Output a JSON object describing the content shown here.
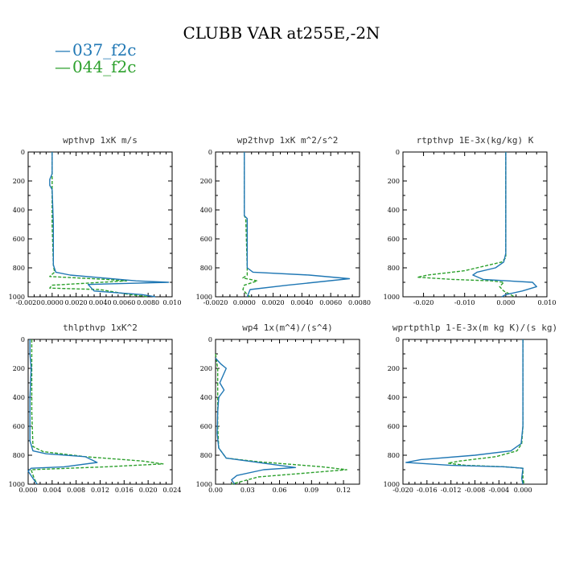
{
  "figure": {
    "title": "CLUBB VAR at255E,-2N",
    "legend": [
      {
        "label": "037_f2c",
        "color": "#1f77b4",
        "dash": "solid"
      },
      {
        "label": "044_f2c",
        "color": "#2ca02c",
        "dash": "dashed"
      }
    ]
  },
  "chart_data": [
    {
      "type": "line",
      "title": "wpthvp  1xK m/s",
      "xlim": [
        -0.002,
        0.01
      ],
      "xticks": [
        -0.002,
        0,
        0.002,
        0.004,
        0.006,
        0.008,
        0.01
      ],
      "xtick_labels": [
        "-0.0020",
        "0.0000",
        "0.0020",
        "0.0040",
        "0.0060",
        "0.0080",
        "0.010"
      ],
      "ylim": [
        0,
        1000
      ],
      "yticks": [
        0,
        200,
        400,
        600,
        800,
        1000
      ],
      "y_inverted": true,
      "series": [
        {
          "name": "037_f2c",
          "points": [
            [
              0.0,
              0
            ],
            [
              0.0,
              150
            ],
            [
              -0.0002,
              190
            ],
            [
              -0.0002,
              230
            ],
            [
              0.0,
              260
            ],
            [
              0.0001,
              500
            ],
            [
              0.0001,
              780
            ],
            [
              0.0003,
              830
            ],
            [
              0.0015,
              850
            ],
            [
              0.007,
              890
            ],
            [
              0.0097,
              900
            ],
            [
              0.003,
              915
            ],
            [
              0.0035,
              960
            ],
            [
              0.0075,
              985
            ],
            [
              0.0086,
              1000
            ]
          ]
        },
        {
          "name": "044_f2c",
          "points": [
            [
              0.0,
              0
            ],
            [
              0.0,
              200
            ],
            [
              0.0,
              500
            ],
            [
              0.0001,
              780
            ],
            [
              0.0002,
              830
            ],
            [
              -0.0002,
              860
            ],
            [
              0.0045,
              880
            ],
            [
              0.0062,
              890
            ],
            [
              0.0,
              920
            ],
            [
              -0.0002,
              940
            ],
            [
              0.004,
              950
            ],
            [
              0.0065,
              985
            ],
            [
              0.008,
              1000
            ]
          ]
        }
      ]
    },
    {
      "type": "line",
      "title": "wp2thvp  1xK m^2/s^2",
      "xlim": [
        -0.002,
        0.008
      ],
      "xticks": [
        -0.002,
        0,
        0.002,
        0.004,
        0.006,
        0.008
      ],
      "xtick_labels": [
        "-0.0020",
        "0.0000",
        "0.0020",
        "0.0040",
        "0.0060",
        "0.0080"
      ],
      "ylim": [
        0,
        1000
      ],
      "yticks": [
        0,
        200,
        400,
        600,
        800,
        1000
      ],
      "y_inverted": true,
      "series": [
        {
          "name": "037_f2c",
          "points": [
            [
              0.0,
              0
            ],
            [
              0.0,
              440
            ],
            [
              0.0002,
              460
            ],
            [
              0.0002,
              520
            ],
            [
              0.0002,
              800
            ],
            [
              0.0006,
              830
            ],
            [
              0.0045,
              850
            ],
            [
              0.0073,
              875
            ],
            [
              0.003,
              920
            ],
            [
              0.0004,
              950
            ],
            [
              0.0002,
              1000
            ]
          ]
        },
        {
          "name": "044_f2c",
          "points": [
            [
              0.0,
              0
            ],
            [
              0.0,
              440
            ],
            [
              0.0001,
              460
            ],
            [
              0.0002,
              800
            ],
            [
              0.0002,
              850
            ],
            [
              -0.0001,
              870
            ],
            [
              0.0009,
              890
            ],
            [
              0.0,
              920
            ],
            [
              -0.0001,
              950
            ],
            [
              0.0002,
              985
            ],
            [
              0.0004,
              1000
            ]
          ]
        }
      ]
    },
    {
      "type": "line",
      "title": "rtpthvp  1E-3x(kg/kg) K",
      "xlim": [
        -0.025,
        0.01
      ],
      "xticks": [
        -0.02,
        -0.01,
        0,
        0.01
      ],
      "xtick_labels": [
        "-0.020",
        "-0.010",
        "0.000",
        "0.010"
      ],
      "ylim": [
        0,
        1000
      ],
      "yticks": [
        0,
        200,
        400,
        600,
        800,
        1000
      ],
      "y_inverted": true,
      "series": [
        {
          "name": "037_f2c",
          "points": [
            [
              0.0,
              0
            ],
            [
              0.0,
              700
            ],
            [
              -0.0005,
              760
            ],
            [
              -0.0025,
              800
            ],
            [
              -0.007,
              830
            ],
            [
              -0.008,
              850
            ],
            [
              -0.0055,
              880
            ],
            [
              0.0065,
              900
            ],
            [
              0.0075,
              930
            ],
            [
              0.004,
              960
            ],
            [
              0.0,
              985
            ],
            [
              -0.001,
              1000
            ]
          ]
        },
        {
          "name": "044_f2c",
          "points": [
            [
              0.0,
              0
            ],
            [
              0.0,
              730
            ],
            [
              -0.001,
              760
            ],
            [
              -0.01,
              820
            ],
            [
              -0.019,
              850
            ],
            [
              -0.0215,
              865
            ],
            [
              -0.013,
              880
            ],
            [
              -0.0035,
              890
            ],
            [
              -0.0005,
              900
            ],
            [
              -0.0015,
              930
            ],
            [
              -0.0005,
              960
            ],
            [
              0.0015,
              990
            ],
            [
              0.002,
              1000
            ]
          ]
        }
      ]
    },
    {
      "type": "line",
      "title": "thlpthvp  1xK^2",
      "xlim": [
        0,
        0.024
      ],
      "xticks": [
        0,
        0.004,
        0.008,
        0.012,
        0.016,
        0.02,
        0.024
      ],
      "xtick_labels": [
        "0.000",
        "0.004",
        "0.008",
        "0.012",
        "0.016",
        "0.020",
        "0.024"
      ],
      "ylim": [
        0,
        1000
      ],
      "yticks": [
        0,
        200,
        400,
        600,
        800,
        1000
      ],
      "y_inverted": true,
      "series": [
        {
          "name": "037_f2c",
          "points": [
            [
              0.0003,
              0
            ],
            [
              0.0003,
              100
            ],
            [
              0.0005,
              200
            ],
            [
              0.0003,
              400
            ],
            [
              0.0003,
              700
            ],
            [
              0.0008,
              770
            ],
            [
              0.003,
              790
            ],
            [
              0.0095,
              810
            ],
            [
              0.0115,
              850
            ],
            [
              0.006,
              880
            ],
            [
              0.0005,
              890
            ],
            [
              0.0,
              910
            ],
            [
              0.0008,
              960
            ],
            [
              0.0015,
              1000
            ]
          ]
        },
        {
          "name": "044_f2c",
          "points": [
            [
              0.0006,
              0
            ],
            [
              0.0006,
              200
            ],
            [
              0.0006,
              500
            ],
            [
              0.0008,
              740
            ],
            [
              0.0025,
              775
            ],
            [
              0.0095,
              810
            ],
            [
              0.019,
              840
            ],
            [
              0.0225,
              860
            ],
            [
              0.013,
              880
            ],
            [
              0.0005,
              900
            ],
            [
              0.001,
              960
            ],
            [
              0.0015,
              1000
            ]
          ]
        }
      ]
    },
    {
      "type": "line",
      "title": "wp4  1x(m^4)/(s^4)",
      "xlim": [
        0,
        0.135
      ],
      "xticks": [
        0,
        0.03,
        0.06,
        0.09,
        0.12
      ],
      "xtick_labels": [
        "0.00",
        "0.03",
        "0.06",
        "0.09",
        "0.12"
      ],
      "ylim": [
        0,
        1000
      ],
      "yticks": [
        0,
        200,
        400,
        600,
        800,
        1000
      ],
      "y_inverted": true,
      "series": [
        {
          "name": "037_f2c",
          "points": [
            [
              0.0,
              130
            ],
            [
              0.005,
              170
            ],
            [
              0.01,
              200
            ],
            [
              0.007,
              250
            ],
            [
              0.004,
              300
            ],
            [
              0.008,
              350
            ],
            [
              0.003,
              400
            ],
            [
              0.002,
              500
            ],
            [
              0.0015,
              650
            ],
            [
              0.003,
              750
            ],
            [
              0.01,
              820
            ],
            [
              0.05,
              860
            ],
            [
              0.075,
              885
            ],
            [
              0.045,
              900
            ],
            [
              0.02,
              940
            ],
            [
              0.015,
              970
            ],
            [
              0.018,
              1000
            ]
          ]
        },
        {
          "name": "044_f2c",
          "points": [
            [
              0.0,
              100
            ],
            [
              0.002,
              200
            ],
            [
              0.002,
              400
            ],
            [
              0.002,
              600
            ],
            [
              0.003,
              750
            ],
            [
              0.01,
              820
            ],
            [
              0.04,
              845
            ],
            [
              0.1,
              880
            ],
            [
              0.123,
              900
            ],
            [
              0.09,
              920
            ],
            [
              0.04,
              950
            ],
            [
              0.02,
              990
            ],
            [
              0.015,
              1000
            ]
          ]
        }
      ]
    },
    {
      "type": "line",
      "title": "wprtpthlp  1-E-3x(m kg K)/(s kg)",
      "xlim": [
        -0.02,
        0.004
      ],
      "xticks": [
        -0.02,
        -0.016,
        -0.012,
        -0.008,
        -0.004,
        0
      ],
      "xtick_labels": [
        "-0.020",
        "-0.016",
        "-0.012",
        "-0.008",
        "-0.004",
        "0.000"
      ],
      "ylim": [
        0,
        1000
      ],
      "yticks": [
        0,
        200,
        400,
        600,
        800,
        1000
      ],
      "y_inverted": true,
      "series": [
        {
          "name": "037_f2c",
          "points": [
            [
              0.0,
              0
            ],
            [
              0.0,
              400
            ],
            [
              0.0,
              600
            ],
            [
              -0.0003,
              720
            ],
            [
              -0.002,
              770
            ],
            [
              -0.008,
              800
            ],
            [
              -0.017,
              830
            ],
            [
              -0.0195,
              850
            ],
            [
              -0.012,
              870
            ],
            [
              -0.003,
              880
            ],
            [
              0.0,
              890
            ],
            [
              -0.0002,
              960
            ],
            [
              0.0,
              1000
            ]
          ]
        },
        {
          "name": "044_f2c",
          "points": [
            [
              0.0,
              0
            ],
            [
              0.0,
              600
            ],
            [
              -0.0002,
              720
            ],
            [
              -0.001,
              770
            ],
            [
              -0.0045,
              810
            ],
            [
              -0.0105,
              840
            ],
            [
              -0.0125,
              855
            ],
            [
              -0.0095,
              870
            ],
            [
              -0.003,
              880
            ],
            [
              0.0,
              890
            ],
            [
              0.0,
              960
            ],
            [
              0.0002,
              1000
            ]
          ]
        }
      ]
    }
  ]
}
